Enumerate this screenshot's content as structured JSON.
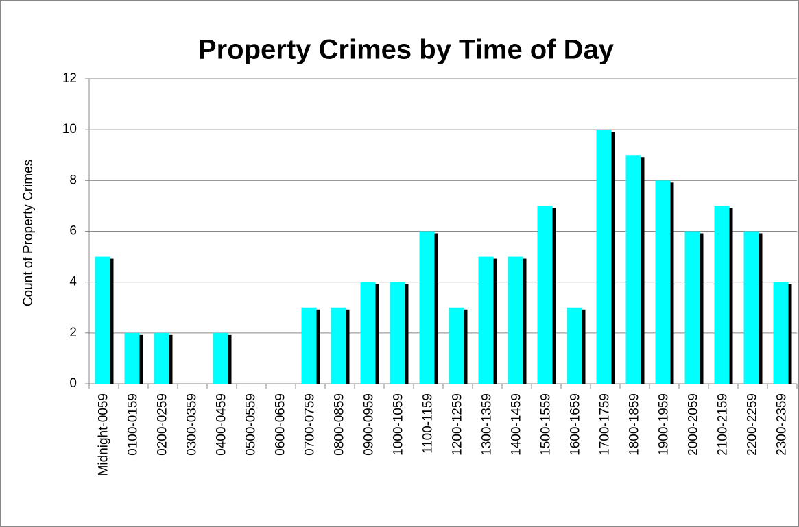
{
  "chart_data": {
    "type": "bar",
    "title": "Property Crimes by Time of Day",
    "y_label": "Count of Property Crimes",
    "categories": [
      "Midnight-0059",
      "0100-0159",
      "0200-0259",
      "0300-0359",
      "0400-0459",
      "0500-0559",
      "0600-0659",
      "0700-0759",
      "0800-0859",
      "0900-0959",
      "1000-1059",
      "1100-1159",
      "1200-1259",
      "1300-1359",
      "1400-1459",
      "1500-1559",
      "1600-1659",
      "1700-1759",
      "1800-1859",
      "1900-1959",
      "2000-2059",
      "2100-2159",
      "2200-2259",
      "2300-2359"
    ],
    "values": [
      5,
      2,
      2,
      0,
      2,
      0,
      0,
      3,
      3,
      4,
      4,
      6,
      3,
      5,
      5,
      7,
      3,
      10,
      9,
      8,
      6,
      7,
      6,
      4
    ],
    "color": "#00ffff",
    "shadow_color": "#000000",
    "ylim": [
      0,
      12
    ],
    "yticks": [
      0,
      2,
      4,
      6,
      8,
      10,
      12
    ],
    "grid": true
  }
}
